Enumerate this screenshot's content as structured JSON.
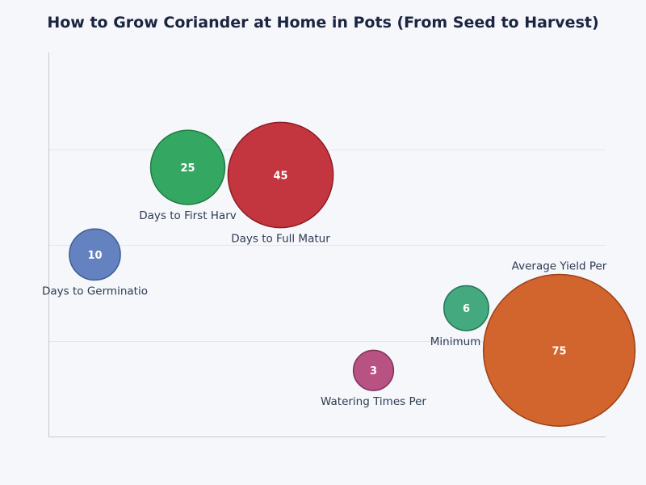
{
  "chart_data": {
    "type": "scatter",
    "subtype": "bubble",
    "title": "How to Grow Coriander at Home in Pots (From Seed to Harvest)",
    "xlabel": "",
    "ylabel": "",
    "xlim": [
      -0.5,
      5.5
    ],
    "ylim": [
      0,
      4
    ],
    "grid": "horizontal",
    "points": [
      {
        "label": "Days to Germinatio",
        "value": 10,
        "x": 0,
        "y": 1.9,
        "color": "#6482c0",
        "stroke": "#3f5c96",
        "label_pos": "below"
      },
      {
        "label": "Days to First Harv",
        "value": 25,
        "x": 1,
        "y": 2.81,
        "color": "#34a862",
        "stroke": "#1e7a40",
        "label_pos": "below"
      },
      {
        "label": "Days to Full Matur",
        "value": 45,
        "x": 2,
        "y": 2.73,
        "color": "#c4363f",
        "stroke": "#8e1c24",
        "label_pos": "below"
      },
      {
        "label": "Watering Times Per",
        "value": 3,
        "x": 3,
        "y": 0.69,
        "color": "#b85282",
        "stroke": "#84305a",
        "label_pos": "below"
      },
      {
        "label": "Minimum Sur",
        "value": 6,
        "x": 4,
        "y": 1.34,
        "color": "#45a97f",
        "stroke": "#237656",
        "label_pos": "below"
      },
      {
        "label": "Average Yield Per",
        "value": 75,
        "x": 5,
        "y": 0.9,
        "color": "#d2652d",
        "stroke": "#9a4118",
        "label_pos": "above"
      }
    ]
  }
}
